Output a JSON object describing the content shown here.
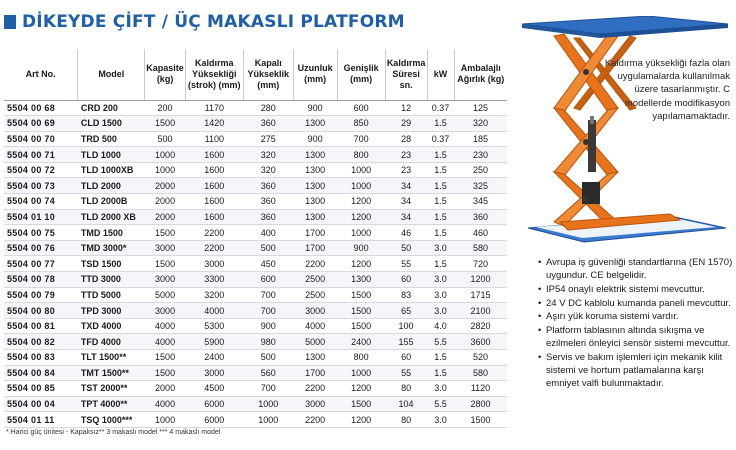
{
  "title": "DİKEYDE ÇİFT / ÜÇ MAKASLI PLATFORM",
  "table": {
    "headers": [
      "Art No.",
      "Model",
      "Kapasite (kg)",
      "Kaldırma Yüksekliği (strok) (mm)",
      "Kapalı Yükseklik (mm)",
      "Uzunluk (mm)",
      "Genişlik (mm)",
      "Kaldırma Süresi sn.",
      "kW",
      "Ambalajlı Ağırlık (kg)"
    ],
    "rows": [
      [
        "5504 00 68",
        "CRD 200",
        "200",
        "1170",
        "280",
        "900",
        "600",
        "12",
        "0.37",
        "125"
      ],
      [
        "5504 00 69",
        "CLD 1500",
        "1500",
        "1420",
        "360",
        "1300",
        "850",
        "29",
        "1.5",
        "320"
      ],
      [
        "5504 00 70",
        "TRD 500",
        "500",
        "1100",
        "275",
        "900",
        "700",
        "28",
        "0.37",
        "185"
      ],
      [
        "5504 00 71",
        "TLD 1000",
        "1000",
        "1600",
        "320",
        "1300",
        "800",
        "23",
        "1.5",
        "230"
      ],
      [
        "5504 00 72",
        "TLD 1000XB",
        "1000",
        "1600",
        "320",
        "1300",
        "1000",
        "23",
        "1.5",
        "250"
      ],
      [
        "5504 00 73",
        "TLD 2000",
        "2000",
        "1600",
        "360",
        "1300",
        "1000",
        "34",
        "1.5",
        "325"
      ],
      [
        "5504 00 74",
        "TLD 2000B",
        "2000",
        "1600",
        "360",
        "1300",
        "1200",
        "34",
        "1.5",
        "345"
      ],
      [
        "5504 01 10",
        "TLD 2000 XB",
        "2000",
        "1600",
        "360",
        "1300",
        "1200",
        "34",
        "1.5",
        "360"
      ],
      [
        "5504 00 75",
        "TMD 1500",
        "1500",
        "2200",
        "400",
        "1700",
        "1000",
        "46",
        "1.5",
        "460"
      ],
      [
        "5504 00 76",
        "TMD 3000*",
        "3000",
        "2200",
        "500",
        "1700",
        "900",
        "50",
        "3.0",
        "580"
      ],
      [
        "5504 00 77",
        "TSD 1500",
        "1500",
        "3000",
        "450",
        "2200",
        "1200",
        "55",
        "1.5",
        "720"
      ],
      [
        "5504 00 78",
        "TTD 3000",
        "3000",
        "3300",
        "600",
        "2500",
        "1300",
        "60",
        "3.0",
        "1200"
      ],
      [
        "5504 00 79",
        "TTD 5000",
        "5000",
        "3200",
        "700",
        "2500",
        "1500",
        "83",
        "3.0",
        "1715"
      ],
      [
        "5504 00 80",
        "TPD 3000",
        "3000",
        "4000",
        "700",
        "3000",
        "1500",
        "65",
        "3.0",
        "2100"
      ],
      [
        "5504 00 81",
        "TXD 4000",
        "4000",
        "5300",
        "900",
        "4000",
        "1500",
        "100",
        "4.0",
        "2820"
      ],
      [
        "5504 00 82",
        "TFD 4000",
        "4000",
        "5900",
        "980",
        "5000",
        "2400",
        "155",
        "5.5",
        "3600"
      ],
      [
        "5504 00 83",
        "TLT 1500**",
        "1500",
        "2400",
        "500",
        "1300",
        "800",
        "60",
        "1.5",
        "520"
      ],
      [
        "5504 00 84",
        "TMT 1500**",
        "1500",
        "3000",
        "560",
        "1700",
        "1000",
        "55",
        "1.5",
        "580"
      ],
      [
        "5504 00 85",
        "TST 2000**",
        "2000",
        "4500",
        "700",
        "2200",
        "1200",
        "80",
        "3.0",
        "1120"
      ],
      [
        "5504 00 04",
        "TPT 4000**",
        "4000",
        "6000",
        "1000",
        "3000",
        "1500",
        "104",
        "5.5",
        "2800"
      ],
      [
        "5504 01 11",
        "TSQ 1000***",
        "1000",
        "6000",
        "1000",
        "2200",
        "1200",
        "80",
        "3.0",
        "1500"
      ]
    ]
  },
  "footnote": "* Harici güç ünitesi - Kapaksız** 3 makaslı model  *** 4 makaslı model",
  "note": "Kaldırma yüksekliği fazla olan uygulamalarda kullanılmak üzere tasarlanmıştır. C modellerde modifikasyon yapılamamaktadır.",
  "features": [
    "Avrupa iş güvenliği standartlarına (EN 1570) uygundur. CE belgelidir.",
    "IP54 onaylı elektrik sistemi mevcuttur.",
    "24 V DC kablolu kumanda paneli mevcuttur.",
    "Aşırı yük koruma sistemi vardır.",
    "Platform tablasının altında sıkışma ve ezilmeleri önleyici sensör sistemi mevcuttur.",
    "Servis ve bakım işlemleri için mekanik kilit sistemi ve hortum patlamalarına karşı emniyet valfi bulunmaktadır."
  ],
  "colors": {
    "title": "#1f5fa8",
    "platform_top": "#2f6ec0",
    "scissor": "#e8731a",
    "base": "#3a7bd0"
  },
  "icons": {
    "title_mark": "blue-square-icon",
    "product": "scissor-lift-illustration"
  }
}
